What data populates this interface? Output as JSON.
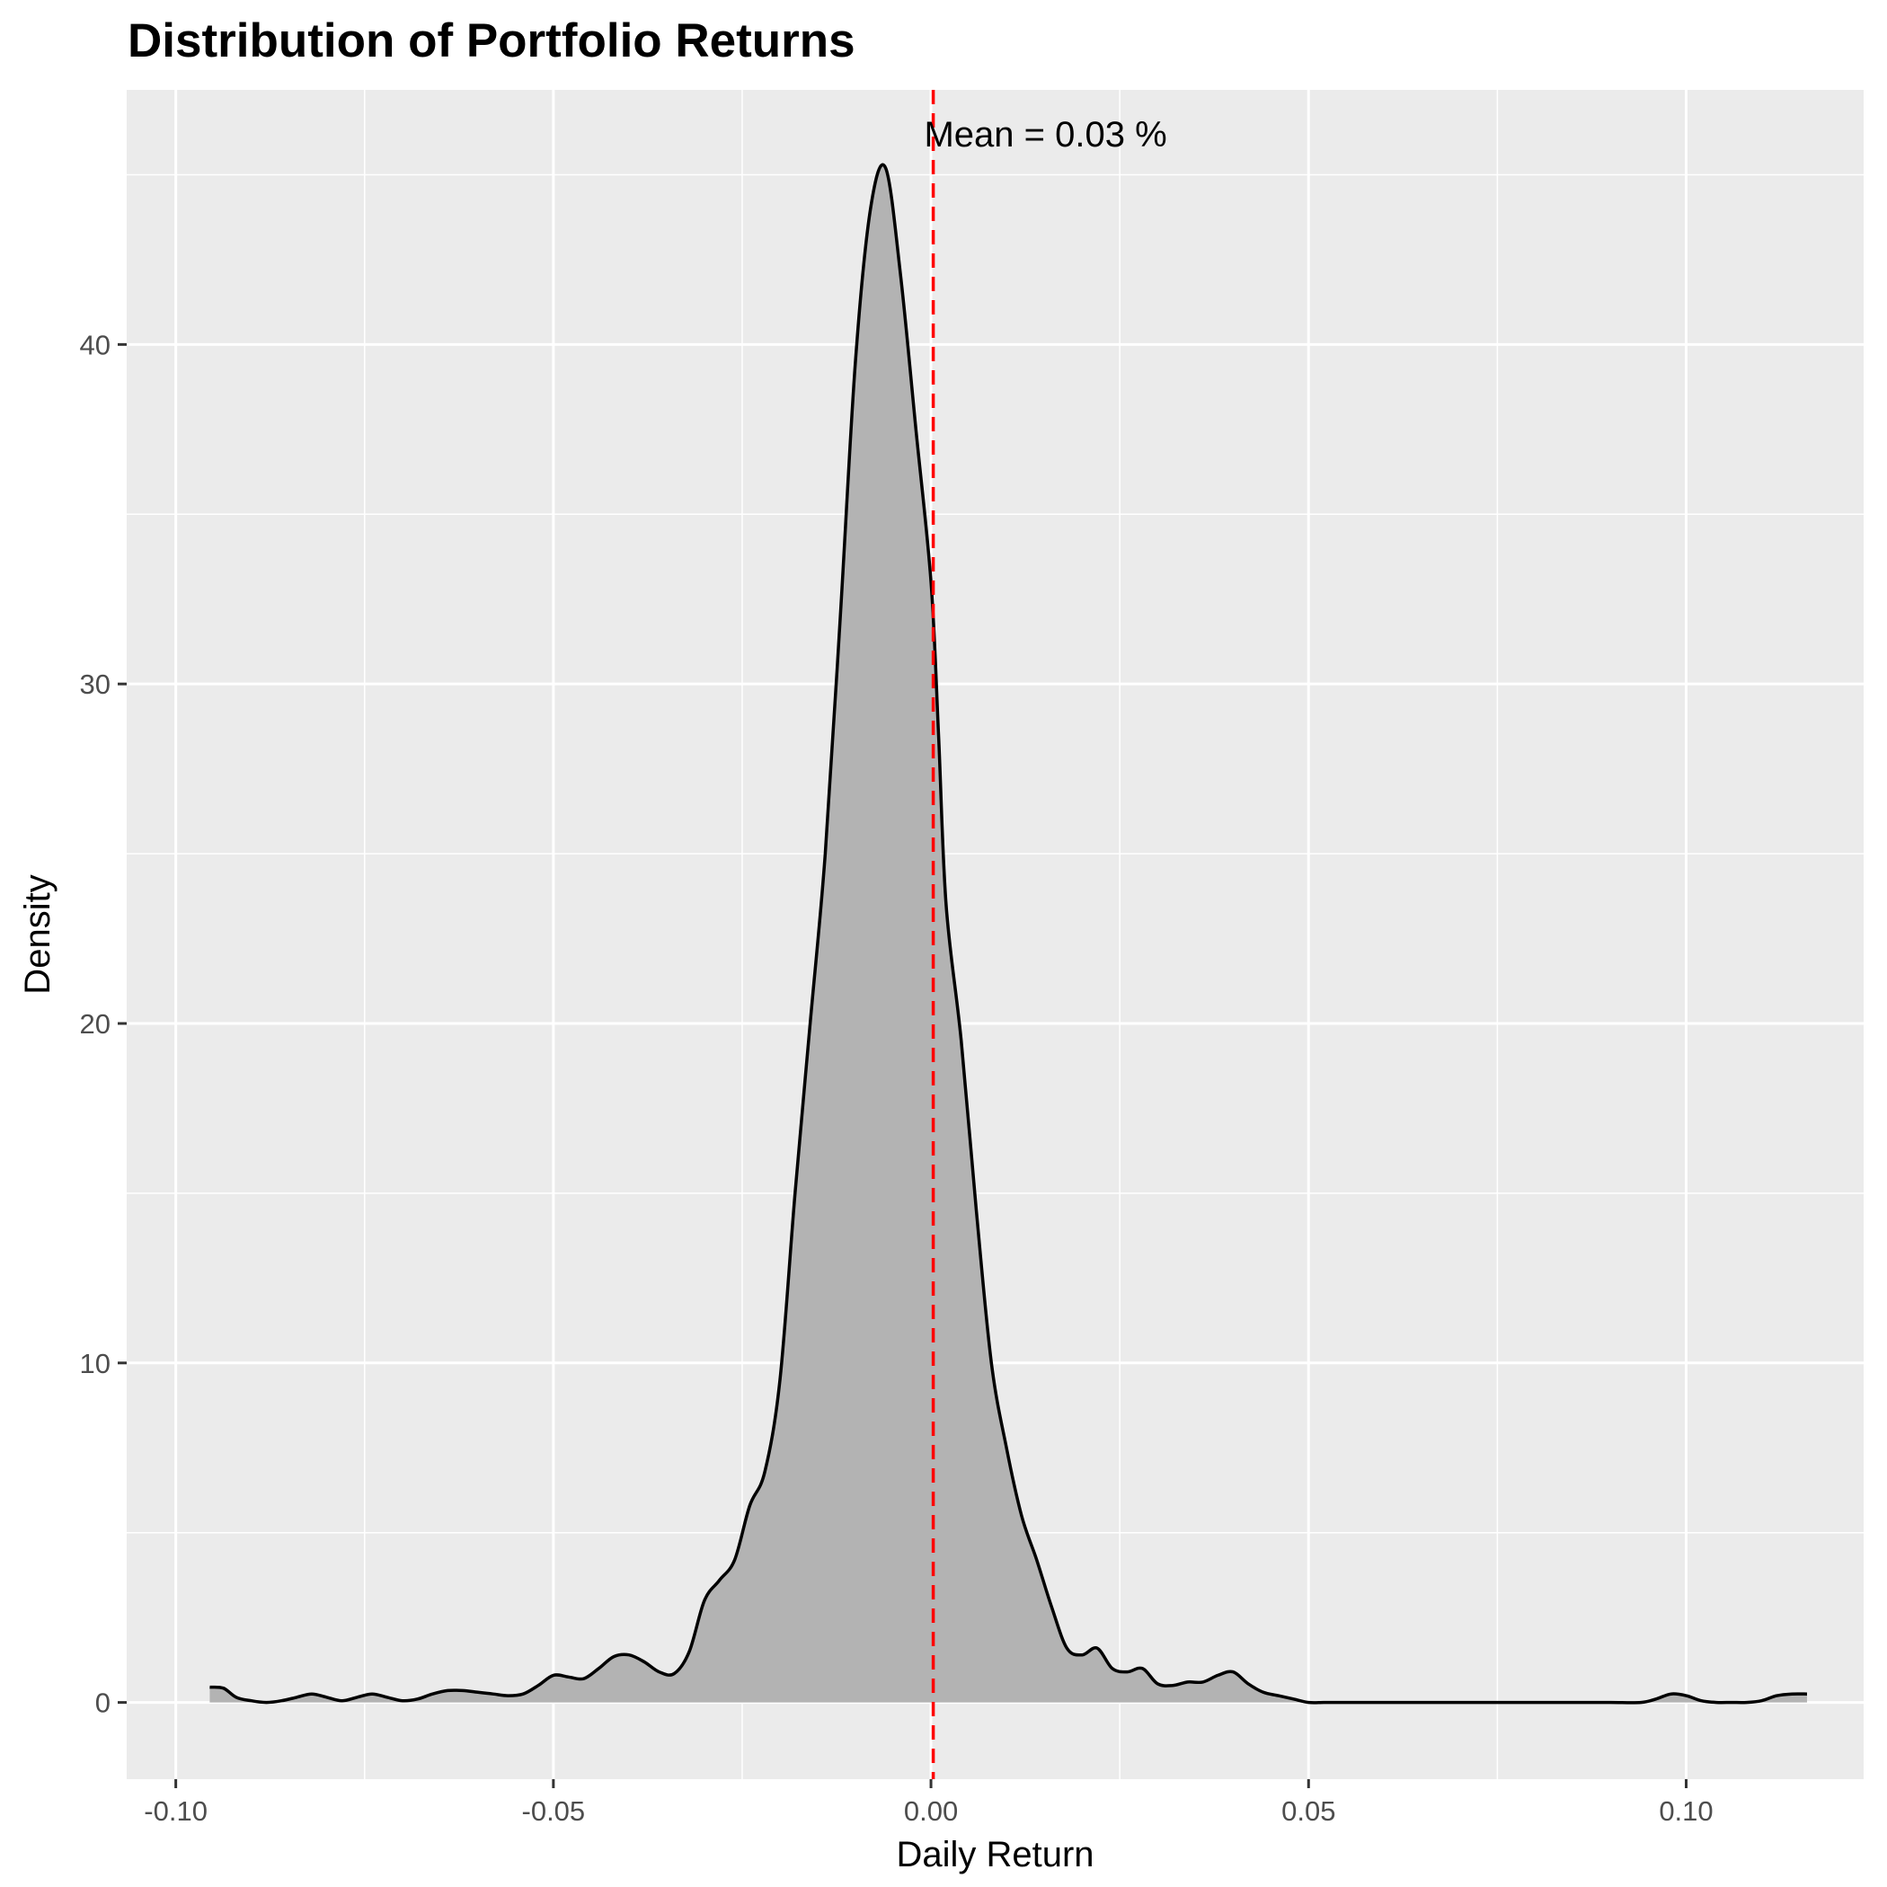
{
  "chart_data": {
    "type": "area",
    "title": "Distribution of Portfolio Returns",
    "xlabel": "Daily Return",
    "ylabel": "Density",
    "xlim": [
      -0.1065,
      0.1235
    ],
    "ylim": [
      -2.26,
      47.5
    ],
    "x_ticks": [
      -0.1,
      -0.05,
      0.0,
      0.05,
      0.1
    ],
    "x_tick_labels": [
      "-0.10",
      "-0.05",
      "0.00",
      "0.05",
      "0.10"
    ],
    "y_ticks": [
      0,
      10,
      20,
      30,
      40
    ],
    "y_tick_labels": [
      "0",
      "10",
      "20",
      "30",
      "40"
    ],
    "grid": true,
    "mean_line": {
      "x": 0.0003,
      "color": "#ff0000",
      "style": "dashed"
    },
    "annotation": {
      "text": "Mean = 0.03 %",
      "x": 0.0003,
      "y": 46.2
    },
    "colors": {
      "panel": "#ebebeb",
      "grid": "#ffffff",
      "fill": "#b3b3b3",
      "line": "#000000"
    },
    "series": [
      {
        "x": [
          -0.0955,
          -0.0937,
          -0.092,
          -0.09,
          -0.088,
          -0.086,
          -0.084,
          -0.082,
          -0.08,
          -0.078,
          -0.076,
          -0.074,
          -0.072,
          -0.07,
          -0.068,
          -0.066,
          -0.064,
          -0.062,
          -0.06,
          -0.058,
          -0.056,
          -0.054,
          -0.052,
          -0.05,
          -0.048,
          -0.046,
          -0.044,
          -0.042,
          -0.04,
          -0.038,
          -0.036,
          -0.034,
          -0.032,
          -0.03,
          -0.028,
          -0.026,
          -0.024,
          -0.022,
          -0.02,
          -0.018,
          -0.016,
          -0.014,
          -0.012,
          -0.01,
          -0.008,
          -0.006,
          -0.004,
          -0.002,
          0.0,
          0.001,
          0.002,
          0.004,
          0.006,
          0.008,
          0.01,
          0.012,
          0.014,
          0.016,
          0.018,
          0.02,
          0.022,
          0.024,
          0.026,
          0.028,
          0.03,
          0.032,
          0.034,
          0.036,
          0.038,
          0.04,
          0.042,
          0.044,
          0.046,
          0.048,
          0.05,
          0.052,
          0.054,
          0.056,
          0.058,
          0.06,
          0.062,
          0.064,
          0.066,
          0.07,
          0.075,
          0.08,
          0.085,
          0.09,
          0.094,
          0.096,
          0.098,
          0.1,
          0.102,
          0.104,
          0.106,
          0.108,
          0.11,
          0.112,
          0.114,
          0.116
        ],
        "y": [
          0.45,
          0.42,
          0.15,
          0.05,
          0.0,
          0.05,
          0.15,
          0.25,
          0.15,
          0.05,
          0.15,
          0.25,
          0.15,
          0.05,
          0.1,
          0.25,
          0.35,
          0.35,
          0.3,
          0.25,
          0.2,
          0.25,
          0.5,
          0.8,
          0.75,
          0.7,
          1.0,
          1.35,
          1.4,
          1.2,
          0.9,
          0.85,
          1.5,
          3.0,
          3.6,
          4.2,
          5.8,
          6.8,
          9.5,
          15.0,
          20.0,
          25.0,
          32.0,
          39.5,
          44.0,
          45.2,
          42.0,
          37.5,
          33.0,
          28.5,
          23.5,
          19.5,
          14.5,
          10.0,
          7.5,
          5.5,
          4.2,
          2.8,
          1.6,
          1.4,
          1.6,
          1.0,
          0.9,
          1.0,
          0.55,
          0.5,
          0.6,
          0.6,
          0.8,
          0.9,
          0.55,
          0.3,
          0.2,
          0.1,
          0.0,
          0.0,
          0.0,
          0.0,
          0.0,
          0.0,
          0.0,
          0.0,
          0.0,
          0.0,
          0.0,
          0.0,
          0.0,
          0.0,
          0.0,
          0.1,
          0.25,
          0.2,
          0.05,
          0.0,
          0.0,
          0.0,
          0.05,
          0.2,
          0.25,
          0.25
        ]
      }
    ]
  }
}
